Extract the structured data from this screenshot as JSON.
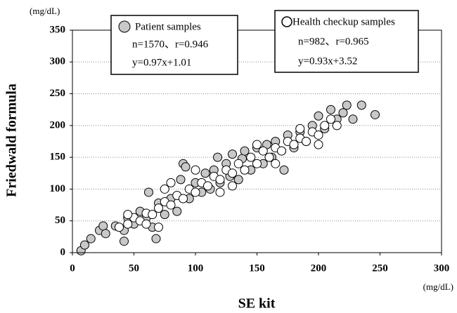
{
  "chart_data": {
    "type": "scatter",
    "y_unit": "(mg/dL)",
    "x_unit": "(mg/dL)",
    "xlabel": "SE kit",
    "ylabel": "Friedwald formula",
    "xlim": [
      0,
      300
    ],
    "ylim": [
      0,
      350
    ],
    "xticks": [
      0,
      50,
      100,
      150,
      200,
      250,
      300
    ],
    "yticks": [
      0,
      50,
      100,
      150,
      200,
      250,
      300,
      350
    ],
    "grid": true,
    "series": [
      {
        "name": "Patient samples",
        "color": "#c8c8c8",
        "annotations": [
          "n=1570、r=0.946",
          "y=0.97x+1.01"
        ],
        "x": [
          7,
          10,
          15,
          22,
          25,
          27,
          35,
          42,
          42,
          45,
          50,
          55,
          60,
          62,
          65,
          68,
          70,
          75,
          80,
          85,
          88,
          90,
          92,
          95,
          100,
          105,
          108,
          112,
          115,
          118,
          120,
          125,
          128,
          130,
          135,
          138,
          140,
          145,
          150,
          155,
          158,
          162,
          165,
          170,
          172,
          175,
          180,
          185,
          190,
          195,
          200,
          205,
          210,
          215,
          220,
          223,
          228,
          235,
          246
        ],
        "values": [
          3,
          12,
          22,
          35,
          42,
          30,
          42,
          18,
          35,
          55,
          45,
          65,
          55,
          95,
          40,
          22,
          78,
          60,
          85,
          65,
          115,
          140,
          135,
          85,
          110,
          95,
          125,
          100,
          130,
          150,
          110,
          140,
          120,
          155,
          115,
          148,
          160,
          130,
          165,
          140,
          170,
          150,
          175,
          160,
          130,
          185,
          165,
          190,
          175,
          200,
          215,
          195,
          225,
          210,
          220,
          232,
          210,
          232,
          217
        ]
      },
      {
        "name": "Health checkup samples",
        "color": "#ffffff",
        "annotations": [
          "n=982、r=0.965",
          "y=0.93x+3.52"
        ],
        "x": [
          38,
          45,
          50,
          55,
          60,
          65,
          70,
          75,
          80,
          85,
          90,
          95,
          100,
          105,
          110,
          115,
          120,
          125,
          130,
          135,
          140,
          145,
          150,
          155,
          160,
          165,
          170,
          175,
          180,
          185,
          190,
          195,
          200,
          205,
          210,
          215,
          45,
          60,
          75,
          70,
          100,
          120,
          150,
          165,
          185,
          200,
          80,
          130
        ],
        "values": [
          40,
          45,
          55,
          50,
          62,
          60,
          70,
          80,
          75,
          90,
          85,
          100,
          95,
          110,
          105,
          120,
          115,
          130,
          125,
          140,
          130,
          150,
          140,
          160,
          150,
          165,
          160,
          175,
          170,
          180,
          175,
          190,
          185,
          200,
          210,
          200,
          60,
          45,
          100,
          40,
          130,
          95,
          170,
          140,
          195,
          170,
          110,
          105
        ]
      }
    ]
  }
}
